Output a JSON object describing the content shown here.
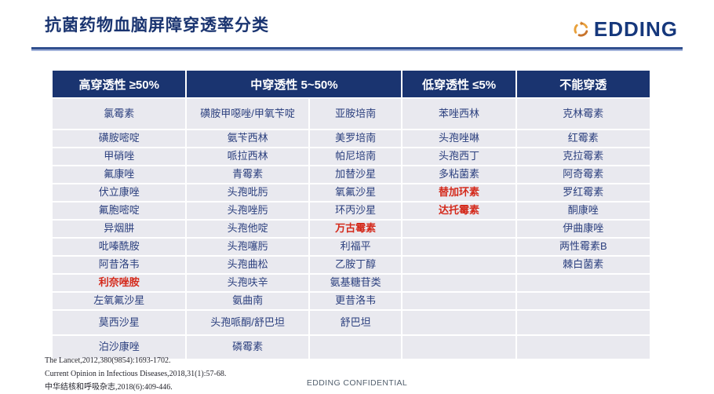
{
  "slide": {
    "title": "抗菌药物血脑屏障穿透率分类"
  },
  "logo": {
    "text": "EDDING",
    "icon": "circular-arrows-icon",
    "text_color": "#16387c",
    "icon_gold": "#e9a13b",
    "icon_brown": "#c8742c"
  },
  "table": {
    "headers": [
      {
        "label": "高穿透性 ≥50%",
        "colspan": 1
      },
      {
        "label": "中穿透性  5~50%",
        "colspan": 2
      },
      {
        "label": "低穿透性 ≤5%",
        "colspan": 1
      },
      {
        "label": "不能穿透",
        "colspan": 1
      }
    ],
    "rows": [
      [
        {
          "text": "氯霉素"
        },
        {
          "text": "磺胺甲噁唑/甲氧苄啶"
        },
        {
          "text": "亚胺培南"
        },
        {
          "text": "苯唑西林"
        },
        {
          "text": "克林霉素"
        }
      ],
      [
        {
          "text": "磺胺嘧啶"
        },
        {
          "text": "氨苄西林"
        },
        {
          "text": "美罗培南"
        },
        {
          "text": "头孢唑啉"
        },
        {
          "text": "红霉素"
        }
      ],
      [
        {
          "text": "甲硝唑"
        },
        {
          "text": "哌拉西林"
        },
        {
          "text": "帕尼培南"
        },
        {
          "text": "头孢西丁"
        },
        {
          "text": "克拉霉素"
        }
      ],
      [
        {
          "text": "氟康唑"
        },
        {
          "text": "青霉素"
        },
        {
          "text": "加替沙星"
        },
        {
          "text": "多粘菌素"
        },
        {
          "text": "阿奇霉素"
        }
      ],
      [
        {
          "text": "伏立康唑"
        },
        {
          "text": "头孢吡肟"
        },
        {
          "text": "氧氟沙星"
        },
        {
          "text": "替加环素",
          "red": true
        },
        {
          "text": "罗红霉素"
        }
      ],
      [
        {
          "text": "氟胞嘧啶"
        },
        {
          "text": "头孢唑肟"
        },
        {
          "text": "环丙沙星"
        },
        {
          "text": "达托霉素",
          "red": true
        },
        {
          "text": "酮康唑"
        }
      ],
      [
        {
          "text": "异烟肼"
        },
        {
          "text": "头孢他啶"
        },
        {
          "text": "万古霉素",
          "red": true
        },
        {
          "text": ""
        },
        {
          "text": "伊曲康唑"
        }
      ],
      [
        {
          "text": "吡嗪酰胺"
        },
        {
          "text": "头孢噻肟"
        },
        {
          "text": "利福平"
        },
        {
          "text": ""
        },
        {
          "text": "两性霉素B"
        }
      ],
      [
        {
          "text": "阿昔洛韦"
        },
        {
          "text": "头孢曲松"
        },
        {
          "text": "乙胺丁醇"
        },
        {
          "text": ""
        },
        {
          "text": "棘白菌素"
        }
      ],
      [
        {
          "text": "利奈唑胺",
          "red": true
        },
        {
          "text": "头孢呋辛"
        },
        {
          "text": "氨基糖苷类"
        },
        {
          "text": ""
        },
        {
          "text": ""
        }
      ],
      [
        {
          "text": "左氧氟沙星"
        },
        {
          "text": "氨曲南"
        },
        {
          "text": "更昔洛韦"
        },
        {
          "text": ""
        },
        {
          "text": ""
        }
      ],
      [
        {
          "text": "莫西沙星"
        },
        {
          "text": "头孢哌酮/舒巴坦"
        },
        {
          "text": "舒巴坦"
        },
        {
          "text": ""
        },
        {
          "text": ""
        }
      ],
      [
        {
          "text": "泊沙康唑"
        },
        {
          "text": "磷霉素"
        },
        {
          "text": ""
        },
        {
          "text": ""
        },
        {
          "text": ""
        }
      ]
    ]
  },
  "footer": {
    "refs": [
      "The Lancet,2012,380(9854):1693-1702.",
      "Current Opinion in Infectious Diseases,2018,31(1):57-68.",
      "中华结核和呼吸杂志,2018(6):409-446."
    ],
    "confidential": "EDDING CONFIDENTIAL"
  },
  "colors": {
    "title": "#1a3470",
    "header_bg": "#1a3470",
    "cell_bg": "#e9e9ef",
    "text_navy": "#2b3f7e",
    "highlight_red": "#d42a1c",
    "rule_blue": "#31508f"
  }
}
